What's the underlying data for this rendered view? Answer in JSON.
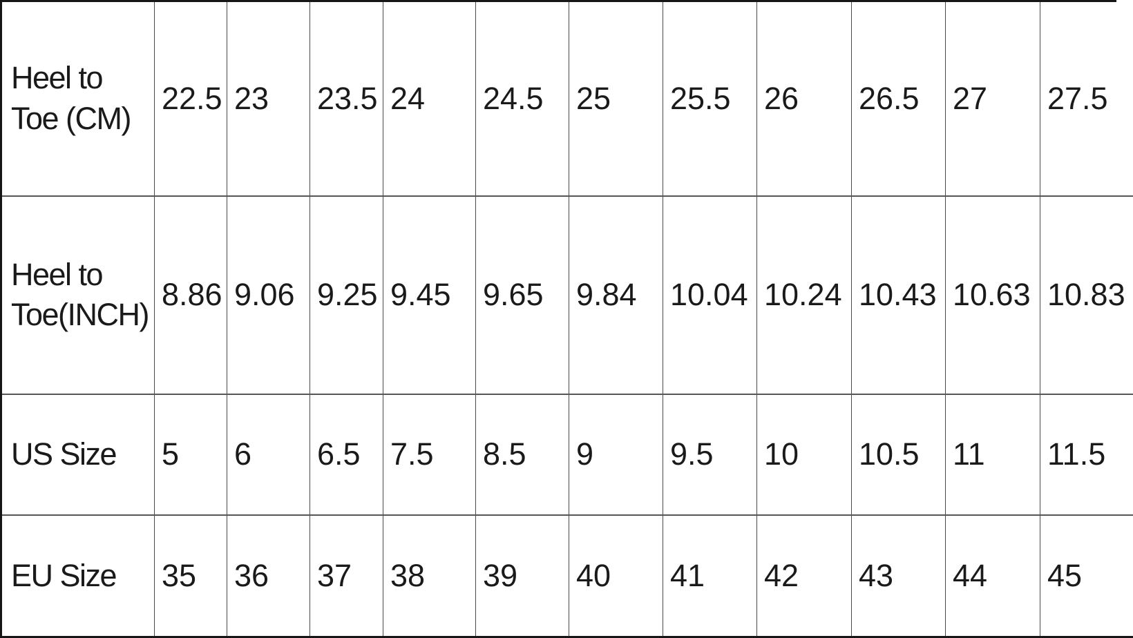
{
  "table": {
    "rows": [
      {
        "label": "Heel to\nToe (CM)",
        "values": [
          "22.5",
          "23",
          "23.5",
          "24",
          "24.5",
          "25",
          "25.5",
          "26",
          "26.5",
          "27",
          "27.5"
        ]
      },
      {
        "label": "Heel to\nToe(INCH)",
        "values": [
          "8.86",
          "9.06",
          "9.25",
          "9.45",
          "9.65",
          "9.84",
          "10.04",
          "10.24",
          "10.43",
          "10.63",
          "10.83"
        ]
      },
      {
        "label": "US Size",
        "values": [
          "5",
          "6",
          "6.5",
          "7.5",
          "8.5",
          "9",
          "9.5",
          "10",
          "10.5",
          "11",
          "11.5"
        ]
      },
      {
        "label": "EU Size",
        "values": [
          "35",
          "36",
          "37",
          "38",
          "39",
          "40",
          "41",
          "42",
          "43",
          "44",
          "45"
        ]
      }
    ]
  },
  "colors": {
    "text": "#1a1a1a",
    "grid_inner": "#4a4a4a",
    "grid_outer": "#161616",
    "background": "#ffffff"
  },
  "chart_data": {
    "type": "table",
    "row_headers": [
      "Heel to Toe (CM)",
      "Heel to Toe(INCH)",
      "US Size",
      "EU Size"
    ],
    "rows": [
      [
        22.5,
        23,
        23.5,
        24,
        24.5,
        25,
        25.5,
        26,
        26.5,
        27,
        27.5
      ],
      [
        8.86,
        9.06,
        9.25,
        9.45,
        9.65,
        9.84,
        10.04,
        10.24,
        10.43,
        10.63,
        10.83
      ],
      [
        5,
        6,
        6.5,
        7.5,
        8.5,
        9,
        9.5,
        10,
        10.5,
        11,
        11.5
      ],
      [
        35,
        36,
        37,
        38,
        39,
        40,
        41,
        42,
        43,
        44,
        45
      ]
    ]
  }
}
